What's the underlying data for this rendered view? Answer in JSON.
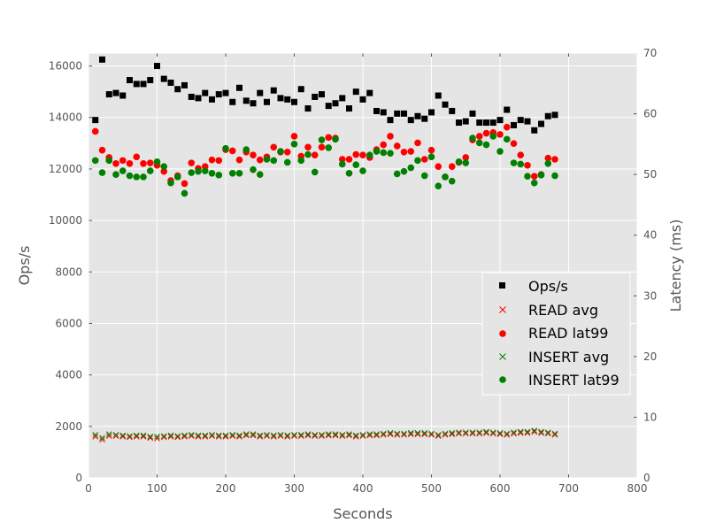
{
  "chart_data": {
    "type": "scatter",
    "xlabel": "Seconds",
    "ylabel": "Ops/s",
    "y2label": "Latency (ms)",
    "xlim": [
      0,
      800
    ],
    "ylim": [
      0,
      16500
    ],
    "y2lim": [
      0,
      70
    ],
    "xticks": [
      "0",
      "100",
      "200",
      "300",
      "400",
      "500",
      "600",
      "700",
      "800"
    ],
    "yticks": [
      "0",
      "2000",
      "4000",
      "6000",
      "8000",
      "10000",
      "12000",
      "14000",
      "16000"
    ],
    "y2ticks": [
      "0",
      "10",
      "20",
      "30",
      "40",
      "50",
      "60",
      "70"
    ],
    "grid": true,
    "legend_position": "center-right",
    "x": [
      10,
      20,
      30,
      40,
      50,
      60,
      70,
      80,
      90,
      100,
      110,
      120,
      130,
      140,
      150,
      160,
      170,
      180,
      190,
      200,
      210,
      220,
      230,
      240,
      250,
      260,
      270,
      280,
      290,
      300,
      310,
      320,
      330,
      340,
      350,
      360,
      370,
      380,
      390,
      400,
      410,
      420,
      430,
      440,
      450,
      460,
      470,
      480,
      490,
      500,
      510,
      520,
      530,
      540,
      550,
      560,
      570,
      580,
      590,
      600,
      610,
      620,
      630,
      640,
      650,
      660,
      670,
      680
    ],
    "series": [
      {
        "name": "Ops/s",
        "axis": "left",
        "marker": "square",
        "color": "#000000",
        "values": [
          13900,
          16250,
          14900,
          14950,
          14850,
          15450,
          15300,
          15300,
          15450,
          16000,
          15500,
          15350,
          15100,
          15250,
          14800,
          14750,
          14950,
          14700,
          14900,
          14950,
          14600,
          15150,
          14650,
          14550,
          14950,
          14600,
          15050,
          14750,
          14700,
          14600,
          15100,
          14350,
          14800,
          14900,
          14450,
          14550,
          14750,
          14350,
          15000,
          14700,
          14950,
          14250,
          14200,
          13900,
          14150,
          14150,
          13900,
          14050,
          13950,
          14200,
          14850,
          14500,
          14250,
          13800,
          13850,
          14150,
          13800,
          13800,
          13800,
          13900,
          14300,
          13700,
          13900,
          13850,
          13500,
          13750,
          14050,
          14100
        ]
      },
      {
        "name": "READ avg",
        "axis": "right",
        "marker": "x",
        "color": "#ff0000",
        "values": [
          6.8,
          6.3,
          6.9,
          6.9,
          6.8,
          6.7,
          6.8,
          6.8,
          6.6,
          6.5,
          6.7,
          6.8,
          6.7,
          6.8,
          6.9,
          6.8,
          6.8,
          6.9,
          6.8,
          6.8,
          6.9,
          6.8,
          7.0,
          7.0,
          6.8,
          6.9,
          6.8,
          6.9,
          6.8,
          6.9,
          6.9,
          7.0,
          6.9,
          6.9,
          7.0,
          7.0,
          6.9,
          7.0,
          6.8,
          6.9,
          7.0,
          7.0,
          7.1,
          7.2,
          7.1,
          7.1,
          7.2,
          7.2,
          7.2,
          7.1,
          6.9,
          7.1,
          7.2,
          7.3,
          7.3,
          7.3,
          7.3,
          7.4,
          7.3,
          7.2,
          7.1,
          7.3,
          7.4,
          7.4,
          7.6,
          7.4,
          7.3,
          7.1
        ]
      },
      {
        "name": "READ lat99",
        "axis": "right",
        "marker": "circle",
        "color": "#ff0000",
        "values": [
          57.1,
          54.0,
          52.8,
          51.8,
          52.3,
          51.8,
          52.9,
          51.8,
          51.9,
          51.5,
          50.5,
          49.0,
          49.8,
          48.5,
          51.9,
          51.0,
          51.3,
          52.4,
          52.3,
          54.1,
          53.9,
          52.4,
          53.7,
          53.2,
          52.4,
          52.9,
          54.5,
          53.7,
          53.7,
          56.3,
          53.0,
          54.5,
          53.2,
          54.5,
          56.1,
          56.0,
          52.5,
          52.5,
          53.3,
          53.2,
          52.8,
          54.1,
          54.9,
          56.3,
          54.7,
          53.7,
          53.8,
          55.2,
          52.5,
          54.0,
          51.3,
          49.6,
          51.3,
          52.0,
          52.8,
          55.7,
          56.3,
          56.8,
          56.9,
          56.6,
          57.8,
          55.1,
          53.2,
          51.5,
          49.7,
          50.0,
          52.7,
          52.5
        ]
      },
      {
        "name": "INSERT avg",
        "axis": "right",
        "marker": "x",
        "color": "#008000",
        "values": [
          7.1,
          6.6,
          7.2,
          7.1,
          7.0,
          6.9,
          7.0,
          7.0,
          6.8,
          6.8,
          6.9,
          7.0,
          6.9,
          7.0,
          7.1,
          7.0,
          7.0,
          7.1,
          7.0,
          7.0,
          7.1,
          7.0,
          7.2,
          7.2,
          7.0,
          7.1,
          7.0,
          7.1,
          7.0,
          7.1,
          7.1,
          7.2,
          7.1,
          7.1,
          7.2,
          7.2,
          7.1,
          7.2,
          7.0,
          7.1,
          7.2,
          7.2,
          7.3,
          7.4,
          7.3,
          7.3,
          7.4,
          7.4,
          7.4,
          7.3,
          7.1,
          7.3,
          7.4,
          7.5,
          7.5,
          7.5,
          7.5,
          7.6,
          7.5,
          7.4,
          7.3,
          7.5,
          7.6,
          7.6,
          7.8,
          7.6,
          7.5,
          7.3
        ]
      },
      {
        "name": "INSERT lat99",
        "axis": "right",
        "marker": "circle",
        "color": "#008000",
        "values": [
          52.3,
          50.3,
          52.3,
          50.0,
          50.6,
          49.8,
          49.6,
          49.6,
          50.6,
          52.1,
          51.3,
          48.6,
          49.6,
          46.9,
          50.3,
          50.5,
          50.6,
          50.2,
          49.9,
          54.3,
          50.2,
          50.2,
          54.1,
          50.8,
          50.0,
          52.5,
          52.3,
          53.8,
          52.0,
          55.0,
          52.3,
          53.3,
          50.4,
          55.7,
          54.4,
          55.8,
          51.7,
          50.2,
          51.6,
          50.6,
          53.2,
          53.8,
          53.6,
          53.5,
          50.1,
          50.5,
          51.1,
          52.3,
          49.8,
          52.9,
          48.1,
          49.6,
          48.9,
          52.1,
          51.9,
          56.0,
          55.2,
          54.9,
          56.3,
          53.8,
          55.8,
          51.9,
          51.7,
          49.7,
          48.6,
          49.9,
          51.8,
          49.8
        ]
      }
    ]
  }
}
